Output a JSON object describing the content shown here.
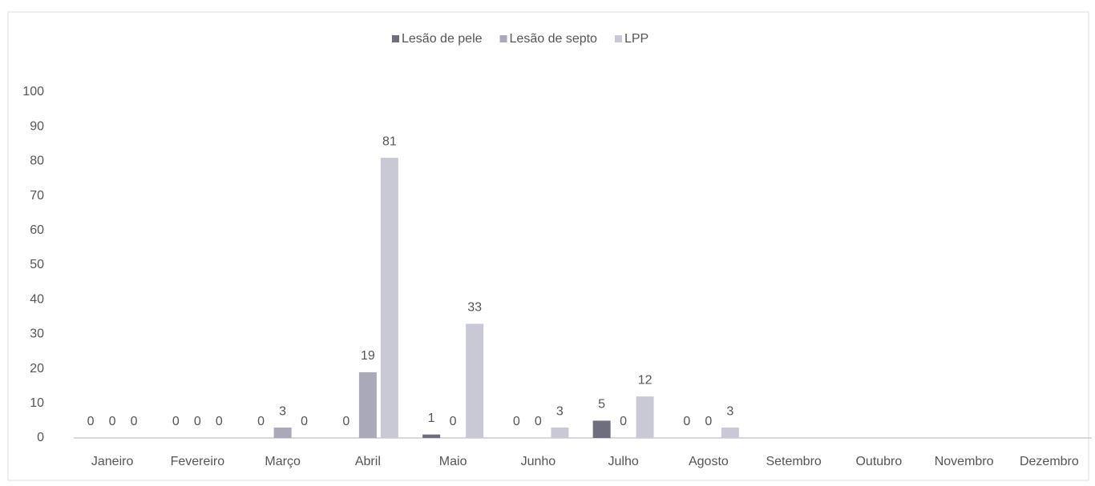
{
  "chart_data": {
    "type": "bar",
    "categories": [
      "Janeiro",
      "Fevereiro",
      "Março",
      "Abril",
      "Maio",
      "Junho",
      "Julho",
      "Agosto",
      "Setembro",
      "Outubro",
      "Novembro",
      "Dezembro"
    ],
    "series": [
      {
        "name": "Lesão de pele",
        "color": "#6e6e80",
        "values": [
          0,
          0,
          0,
          0,
          1,
          0,
          5,
          0,
          null,
          null,
          null,
          null
        ]
      },
      {
        "name": "Lesão de septo",
        "color": "#a9a9ba",
        "values": [
          0,
          0,
          3,
          19,
          0,
          0,
          0,
          0,
          null,
          null,
          null,
          null
        ]
      },
      {
        "name": "LPP",
        "color": "#c9c9d6",
        "values": [
          0,
          0,
          0,
          81,
          33,
          3,
          12,
          3,
          null,
          null,
          null,
          null
        ]
      }
    ],
    "ylim": [
      0,
      100
    ],
    "yticks": [
      0,
      10,
      20,
      30,
      40,
      50,
      60,
      70,
      80,
      90,
      100
    ],
    "legend": "top"
  }
}
